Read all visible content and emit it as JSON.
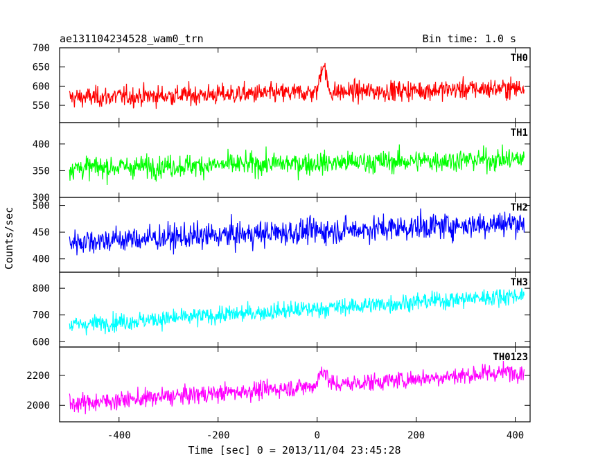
{
  "header": {
    "title": "ae131104234528_wam0_trn",
    "bin_time": "Bin time: 1.0 s"
  },
  "chart_data": {
    "type": "line",
    "xlabel": "Time [sec] 0 = 2013/11/04 23:45:28",
    "ylabel": "Counts/sec",
    "xlim": [
      -520,
      430
    ],
    "xticks": [
      -400,
      -200,
      0,
      200,
      400
    ],
    "x_start": -500,
    "x_end": 418,
    "x_step": 1,
    "panels": [
      {
        "name": "TH0",
        "color": "#ff0000",
        "ylim": [
          505,
          700
        ],
        "yticks": [
          550,
          600,
          650,
          700
        ],
        "baseline_start": 570,
        "baseline_end": 595,
        "noise": 24,
        "bursts": [
          {
            "x": 12,
            "amplitude": 75,
            "width": 8
          }
        ]
      },
      {
        "name": "TH1",
        "color": "#00ff00",
        "ylim": [
          300,
          440
        ],
        "yticks": [
          300,
          350,
          400
        ],
        "baseline_start": 355,
        "baseline_end": 372,
        "noise": 19,
        "bursts": []
      },
      {
        "name": "TH2",
        "color": "#0000ff",
        "ylim": [
          375,
          515
        ],
        "yticks": [
          400,
          450,
          500
        ],
        "baseline_start": 432,
        "baseline_end": 468,
        "noise": 22,
        "bursts": []
      },
      {
        "name": "TH3",
        "color": "#00ffff",
        "ylim": [
          580,
          860
        ],
        "yticks": [
          600,
          700,
          800
        ],
        "baseline_start": 662,
        "baseline_end": 775,
        "noise": 30,
        "bursts": []
      },
      {
        "name": "TH0123",
        "color": "#ff00ff",
        "ylim": [
          1890,
          2390
        ],
        "yticks": [
          2000,
          2200
        ],
        "baseline_start": 2010,
        "baseline_end": 2230,
        "noise": 55,
        "bursts": [
          {
            "x": 12,
            "amplitude": 110,
            "width": 10
          }
        ]
      }
    ]
  }
}
